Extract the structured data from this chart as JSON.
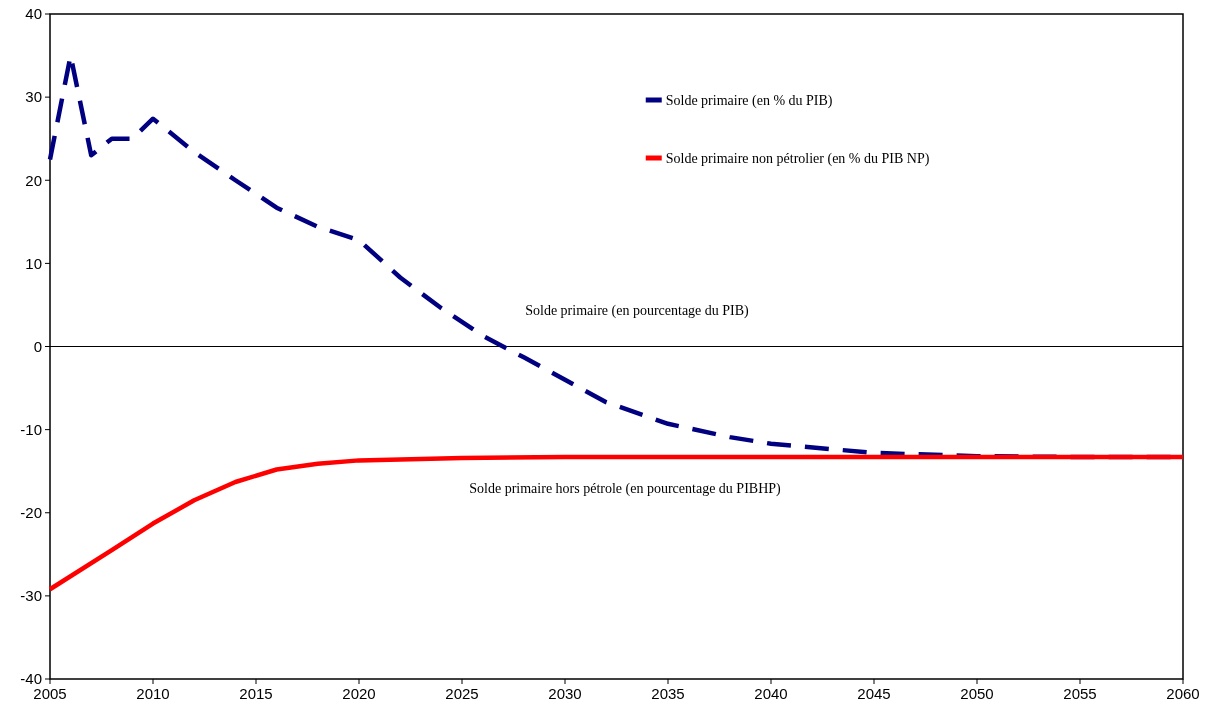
{
  "chart_data": {
    "type": "line",
    "xlim": [
      2005,
      2060
    ],
    "xticks": [
      2005,
      2010,
      2015,
      2020,
      2025,
      2030,
      2035,
      2040,
      2045,
      2050,
      2055,
      2060
    ],
    "ylim": [
      -40,
      40
    ],
    "yticks": [
      -40,
      -30,
      -20,
      -10,
      0,
      10,
      20,
      30,
      40
    ],
    "grid": false,
    "legend": "top right",
    "marker": "none",
    "ref_lines": [
      {
        "axis": "y",
        "value": 0,
        "color": "#000000"
      }
    ],
    "annotations": [
      "Solde primaire (en pourcentage du PIB)",
      "Solde primaire hors pétrole (en pourcentage du PIBHP)"
    ],
    "series": [
      {
        "name": "Solde primaire (en % du PIB)",
        "color": "#000080",
        "line_style": "dashed",
        "x": [
          2005,
          2006,
          2007,
          2008,
          2009,
          2010,
          2012,
          2014,
          2016,
          2018,
          2020,
          2022,
          2024,
          2026,
          2028,
          2030,
          2032,
          2035,
          2038,
          2040,
          2045,
          2050,
          2055,
          2060
        ],
        "values": [
          22.5,
          35,
          23,
          25,
          25,
          27.4,
          23.4,
          20,
          16.7,
          14.4,
          12.8,
          8.3,
          4.6,
          1.3,
          -1.3,
          -4,
          -6.7,
          -9.3,
          -10.9,
          -11.7,
          -12.8,
          -13.2,
          -13.3,
          -13.3
        ]
      },
      {
        "name": "Solde primaire non pétrolier (en % du PIB NP)",
        "color": "#ff0000",
        "line_style": "solid",
        "x": [
          2005,
          2008,
          2010,
          2012,
          2014,
          2016,
          2018,
          2020,
          2025,
          2030,
          2040,
          2050,
          2060
        ],
        "values": [
          -29.2,
          -24.5,
          -21.3,
          -18.5,
          -16.3,
          -14.8,
          -14.1,
          -13.7,
          -13.4,
          -13.3,
          -13.3,
          -13.3,
          -13.3
        ]
      }
    ]
  }
}
